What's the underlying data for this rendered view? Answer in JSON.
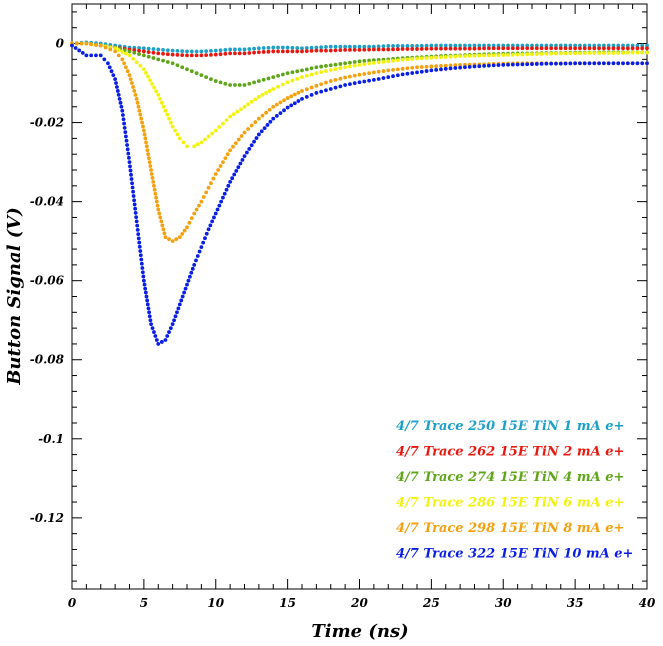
{
  "chart_data": {
    "type": "scatter",
    "xlabel": "Time (ns)",
    "ylabel": "Button Signal (V)",
    "xlim": [
      0,
      40
    ],
    "ylim": [
      -0.138,
      0.01
    ],
    "x_ticks": [
      0,
      5,
      10,
      15,
      20,
      25,
      30,
      35,
      40
    ],
    "x_tick_labels": [
      "0",
      "5",
      "10",
      "15",
      "20",
      "25",
      "30",
      "35",
      "40"
    ],
    "y_ticks": [
      0,
      -0.02,
      -0.04,
      -0.06,
      -0.08,
      -0.1,
      -0.12
    ],
    "y_tick_labels": [
      "0",
      "-0.02",
      "-0.04",
      "-0.06",
      "-0.08",
      "-0.1",
      "-0.12"
    ],
    "grid": false,
    "legend_position": "bottom-right",
    "series": [
      {
        "name": "4/7 Trace 250 15E TiN 1 mA e+",
        "color": "#1e9fc8",
        "x": [
          0,
          1,
          2,
          3,
          4,
          5,
          6,
          7,
          8,
          9,
          10,
          11,
          12,
          13,
          14,
          15,
          16,
          17,
          18,
          19,
          20,
          21,
          22,
          23,
          24,
          25,
          26,
          27,
          28,
          29,
          30,
          31,
          32,
          33,
          34,
          35,
          36,
          37,
          38,
          39,
          40
        ],
        "y": [
          0,
          0.0003,
          0,
          -0.0005,
          -0.001,
          -0.0012,
          -0.0015,
          -0.0018,
          -0.002,
          -0.002,
          -0.0018,
          -0.0015,
          -0.0015,
          -0.0012,
          -0.001,
          -0.001,
          -0.0012,
          -0.001,
          -0.0008,
          -0.0008,
          -0.0008,
          -0.0008,
          -0.0006,
          -0.0006,
          -0.0006,
          -0.0005,
          -0.0005,
          -0.0005,
          -0.0005,
          -0.0005,
          -0.0005,
          -0.0005,
          -0.0005,
          -0.0005,
          -0.0005,
          -0.0005,
          -0.0005,
          -0.0005,
          -0.0005,
          -0.0005,
          -0.0005
        ]
      },
      {
        "name": "4/7 Trace 262 15E TiN 2 mA e+",
        "color": "#e8170f",
        "x": [
          0,
          1,
          2,
          3,
          4,
          5,
          6,
          7,
          8,
          9,
          10,
          11,
          12,
          13,
          14,
          15,
          16,
          17,
          18,
          19,
          20,
          21,
          22,
          23,
          24,
          25,
          26,
          27,
          28,
          29,
          30,
          31,
          32,
          33,
          34,
          35,
          36,
          37,
          38,
          39,
          40
        ],
        "y": [
          0,
          0,
          -0.0005,
          -0.001,
          -0.0015,
          -0.002,
          -0.0025,
          -0.0028,
          -0.003,
          -0.003,
          -0.0028,
          -0.0025,
          -0.0025,
          -0.0022,
          -0.002,
          -0.002,
          -0.002,
          -0.0018,
          -0.0018,
          -0.0016,
          -0.0016,
          -0.0015,
          -0.0015,
          -0.0014,
          -0.0014,
          -0.0013,
          -0.0013,
          -0.0013,
          -0.0013,
          -0.0012,
          -0.0012,
          -0.0012,
          -0.0012,
          -0.0012,
          -0.0012,
          -0.0012,
          -0.0012,
          -0.0012,
          -0.0012,
          -0.0012,
          -0.0012
        ]
      },
      {
        "name": "4/7 Trace 274 15E TiN 4 mA e+",
        "color": "#5fa519",
        "x": [
          0,
          1,
          2,
          3,
          4,
          5,
          6,
          7,
          8,
          9,
          10,
          11,
          12,
          13,
          14,
          15,
          16,
          17,
          18,
          19,
          20,
          21,
          22,
          23,
          24,
          25,
          26,
          27,
          28,
          29,
          30,
          31,
          32,
          33,
          34,
          35,
          36,
          37,
          38,
          39,
          40
        ],
        "y": [
          0,
          0,
          -0.0005,
          -0.001,
          -0.002,
          -0.003,
          -0.004,
          -0.005,
          -0.0065,
          -0.008,
          -0.0095,
          -0.0105,
          -0.0105,
          -0.0095,
          -0.0085,
          -0.0075,
          -0.0068,
          -0.006,
          -0.0055,
          -0.005,
          -0.0045,
          -0.0042,
          -0.004,
          -0.0037,
          -0.0035,
          -0.0033,
          -0.0031,
          -0.003,
          -0.0028,
          -0.0027,
          -0.0026,
          -0.0025,
          -0.0025,
          -0.0024,
          -0.0024,
          -0.0023,
          -0.0023,
          -0.0022,
          -0.0022,
          -0.0022,
          -0.0022
        ]
      },
      {
        "name": "4/7 Trace 286 15E TiN 6 mA e+",
        "color": "#f2f20c",
        "x": [
          0,
          1,
          2,
          3,
          4,
          5,
          6,
          6.5,
          7,
          7.5,
          8,
          8.5,
          9,
          9.5,
          10,
          11,
          12,
          13,
          14,
          15,
          16,
          17,
          18,
          19,
          20,
          21,
          22,
          23,
          24,
          25,
          26,
          27,
          28,
          29,
          30,
          31,
          32,
          33,
          34,
          35,
          36,
          37,
          38,
          39,
          40
        ],
        "y": [
          0,
          0,
          -0.0005,
          -0.0012,
          -0.003,
          -0.0065,
          -0.013,
          -0.017,
          -0.021,
          -0.024,
          -0.026,
          -0.026,
          -0.025,
          -0.0235,
          -0.022,
          -0.0185,
          -0.016,
          -0.0135,
          -0.0115,
          -0.0098,
          -0.0085,
          -0.0075,
          -0.0067,
          -0.006,
          -0.0054,
          -0.0049,
          -0.0045,
          -0.0041,
          -0.0038,
          -0.0036,
          -0.0034,
          -0.0032,
          -0.0031,
          -0.003,
          -0.0029,
          -0.0028,
          -0.0027,
          -0.0026,
          -0.0025,
          -0.0025,
          -0.0024,
          -0.0024,
          -0.0024,
          -0.0023,
          -0.0023
        ]
      },
      {
        "name": "4/7 Trace 298 15E TiN 8 mA e+",
        "color": "#f5a00e",
        "x": [
          0,
          1,
          2,
          3,
          3.5,
          4,
          4.5,
          5,
          5.5,
          6,
          6.5,
          7,
          7.5,
          8,
          8.5,
          9,
          9.5,
          10,
          11,
          12,
          13,
          14,
          15,
          16,
          17,
          18,
          19,
          20,
          21,
          22,
          23,
          24,
          25,
          26,
          27,
          28,
          29,
          30,
          31,
          32,
          33,
          34,
          35,
          36,
          37,
          38,
          39,
          40
        ],
        "y": [
          0,
          0,
          -0.0005,
          -0.002,
          -0.004,
          -0.008,
          -0.014,
          -0.022,
          -0.032,
          -0.042,
          -0.049,
          -0.05,
          -0.049,
          -0.0465,
          -0.043,
          -0.04,
          -0.0365,
          -0.033,
          -0.027,
          -0.0225,
          -0.019,
          -0.016,
          -0.0138,
          -0.012,
          -0.0107,
          -0.0095,
          -0.0086,
          -0.0079,
          -0.0073,
          -0.0068,
          -0.0064,
          -0.006,
          -0.0058,
          -0.0056,
          -0.0054,
          -0.0053,
          -0.0052,
          -0.0051,
          -0.005,
          -0.005,
          -0.005,
          -0.005,
          -0.005,
          -0.005,
          -0.005,
          -0.005,
          -0.005,
          -0.005
        ]
      },
      {
        "name": "4/7 Trace 322 15E TiN 10 mA e+",
        "color": "#0a1ee6",
        "x": [
          0,
          1,
          2,
          2.5,
          3,
          3.5,
          4,
          4.5,
          5,
          5.5,
          6,
          6.5,
          7,
          7.5,
          8,
          8.5,
          9,
          9.5,
          10,
          11,
          12,
          13,
          14,
          15,
          16,
          17,
          18,
          19,
          20,
          21,
          22,
          23,
          24,
          25,
          26,
          27,
          28,
          29,
          30,
          31,
          32,
          33,
          34,
          35,
          36,
          37,
          38,
          39,
          40
        ],
        "y": [
          -0.0005,
          -0.003,
          -0.003,
          -0.005,
          -0.009,
          -0.017,
          -0.03,
          -0.045,
          -0.06,
          -0.071,
          -0.076,
          -0.075,
          -0.071,
          -0.066,
          -0.061,
          -0.056,
          -0.0515,
          -0.047,
          -0.043,
          -0.035,
          -0.0285,
          -0.023,
          -0.019,
          -0.0162,
          -0.014,
          -0.0125,
          -0.0115,
          -0.0105,
          -0.0098,
          -0.0092,
          -0.0085,
          -0.0078,
          -0.0073,
          -0.0068,
          -0.0064,
          -0.0061,
          -0.0058,
          -0.0056,
          -0.0054,
          -0.0053,
          -0.0052,
          -0.0051,
          -0.0051,
          -0.005,
          -0.005,
          -0.005,
          -0.005,
          -0.005,
          -0.005
        ]
      }
    ]
  }
}
